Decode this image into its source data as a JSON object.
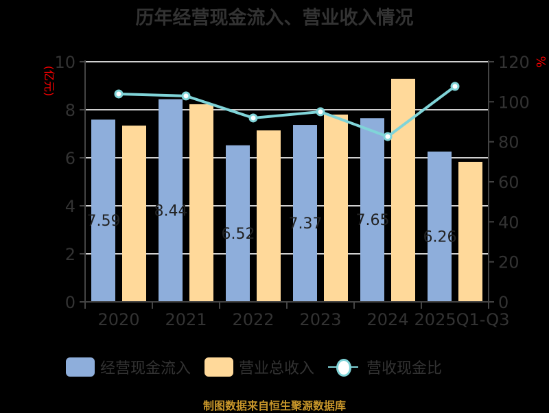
{
  "title": "历年经营现金流入、营业收入情况",
  "footer": "制图数据来自恒生聚源数据库",
  "colors": {
    "cash_bar": "#8eaedb",
    "revenue_bar": "#ffd99a",
    "ratio_line": "#80d4d8",
    "axis_unit": "#ff0000",
    "tick_text": "#333333",
    "grid": "#d0d0d0",
    "footer": "#c8962a"
  },
  "chart_data": {
    "type": "bar",
    "title": "历年经营现金流入、营业收入情况",
    "categories": [
      "2020",
      "2021",
      "2022",
      "2023",
      "2024",
      "2025Q1-Q3"
    ],
    "series": [
      {
        "name": "经营现金流入",
        "type": "bar",
        "axis": "left",
        "values": [
          7.59,
          8.44,
          6.52,
          7.37,
          7.65,
          6.26
        ],
        "data_labels": [
          "7.59",
          "8.44",
          "6.52",
          "7.37",
          "7.65",
          "6.26"
        ]
      },
      {
        "name": "营业总收入",
        "type": "bar",
        "axis": "left",
        "values": [
          7.34,
          8.23,
          7.14,
          7.8,
          9.29,
          5.83
        ]
      },
      {
        "name": "营收现金比",
        "type": "line",
        "axis": "right",
        "values": [
          103.9,
          102.9,
          91.9,
          95.0,
          82.6,
          107.7
        ]
      }
    ],
    "ylabel_left": "(亿元)",
    "ylabel_right": "%",
    "ylim_left": [
      0,
      10
    ],
    "ylim_right": [
      0,
      120
    ],
    "yticks_left": [
      "0",
      "2",
      "4",
      "6",
      "8",
      "10"
    ],
    "yticks_right": [
      "0",
      "20",
      "40",
      "60",
      "80",
      "100",
      "120"
    ],
    "grid": true,
    "legend_position": "bottom"
  },
  "legend": [
    {
      "label": "经营现金流入"
    },
    {
      "label": "营业总收入"
    },
    {
      "label": "营收现金比"
    }
  ]
}
